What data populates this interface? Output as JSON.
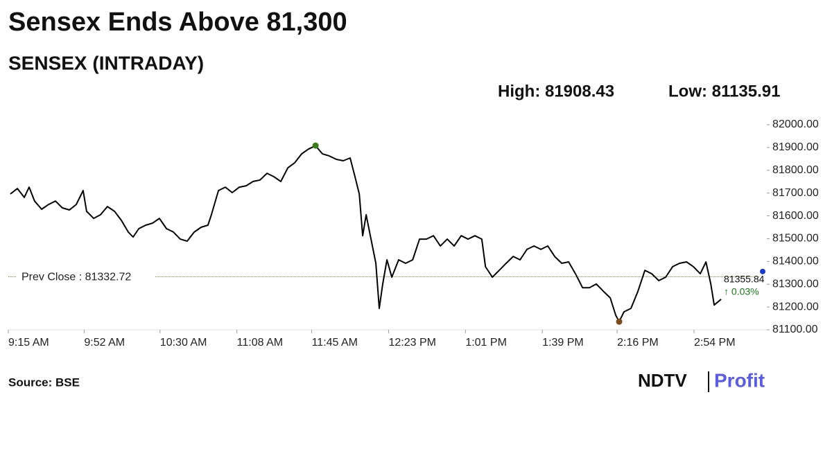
{
  "chart_data": {
    "type": "line",
    "title": "Sensex Ends Above 81,300",
    "subtitle": "SENSEX (INTRADAY)",
    "high": {
      "value": 81908.43,
      "label": "High: 81908.43"
    },
    "low": {
      "value": 81135.91,
      "label": "Low: 81135.91"
    },
    "prev_close": {
      "value": 81332.72,
      "label": "Prev Close : 81332.72"
    },
    "last": {
      "value": 81355.84,
      "change": "↑ 0.03%"
    },
    "source": "Source: BSE",
    "brand": [
      "NDTV",
      "Profit"
    ],
    "xlim": [
      0,
      375
    ],
    "xticks": [
      {
        "value": 0,
        "label": "9:15 AM"
      },
      {
        "value": 37.5,
        "label": "9:52 AM"
      },
      {
        "value": 75,
        "label": "10:30 AM"
      },
      {
        "value": 113,
        "label": "11:08 AM"
      },
      {
        "value": 150,
        "label": "11:45 AM"
      },
      {
        "value": 188,
        "label": "12:23 PM"
      },
      {
        "value": 226,
        "label": "1:01 PM"
      },
      {
        "value": 264,
        "label": "1:39 PM"
      },
      {
        "value": 301,
        "label": "2:16 PM"
      },
      {
        "value": 339,
        "label": "2:54 PM"
      }
    ],
    "ylim": [
      81100,
      82000
    ],
    "yticks": [
      {
        "value": 81100,
        "label": "81100.00"
      },
      {
        "value": 81200,
        "label": "81200.00"
      },
      {
        "value": 81300,
        "label": "81300.00"
      },
      {
        "value": 81400,
        "label": "81400.00"
      },
      {
        "value": 81500,
        "label": "81500.00"
      },
      {
        "value": 81600,
        "label": "81600.00"
      },
      {
        "value": 81700,
        "label": "81700.00"
      },
      {
        "value": 81800,
        "label": "81800.00"
      },
      {
        "value": 81900,
        "label": "81900.00"
      },
      {
        "value": 82000,
        "label": "82000.00"
      }
    ],
    "series": [
      {
        "color": "#000000",
        "x": [
          1.0,
          4.5,
          7.9,
          10.3,
          13.0,
          16.5,
          19.9,
          23.3,
          26.7,
          30.2,
          33.6,
          37.0,
          38.7,
          42.2,
          45.6,
          49.0,
          52.5,
          55.9,
          59.3,
          61.7,
          64.5,
          67.9,
          71.3,
          74.7,
          78.2,
          81.6,
          85.0,
          88.4,
          91.9,
          95.3,
          98.7,
          100.4,
          103.9,
          107.3,
          110.7,
          114.2,
          117.6,
          121.0,
          124.4,
          127.9,
          131.3,
          134.7,
          138.2,
          141.6,
          145.0,
          148.4,
          151.9,
          155.3,
          158.7,
          162.2,
          165.6,
          169.0,
          171.4,
          173.5,
          175.2,
          176.9,
          179.3,
          181.7,
          183.4,
          185.1,
          187.2,
          189.6,
          193.0,
          196.4,
          199.9,
          203.3,
          206.7,
          210.2,
          213.6,
          217.0,
          220.4,
          223.9,
          227.3,
          230.7,
          234.1,
          235.9,
          239.3,
          242.7,
          246.1,
          249.6,
          253.0,
          256.4,
          259.9,
          263.3,
          266.7,
          270.1,
          273.6,
          277.0,
          280.4,
          283.9,
          287.3,
          290.7,
          294.1,
          297.6,
          300.3,
          302.0,
          304.4,
          307.8,
          311.3,
          314.7,
          318.1,
          321.6,
          325.0,
          328.4,
          331.8,
          335.3,
          338.7,
          342.1,
          344.9,
          347.3,
          349.0,
          352.4
        ],
        "values": [
          81696,
          81720,
          81681,
          81726,
          81665,
          81629,
          81650,
          81665,
          81635,
          81626,
          81650,
          81711,
          81620,
          81589,
          81605,
          81641,
          81620,
          81580,
          81529,
          81507,
          81544,
          81559,
          81568,
          81589,
          81544,
          81529,
          81498,
          81489,
          81529,
          81550,
          81559,
          81605,
          81711,
          81726,
          81702,
          81726,
          81732,
          81751,
          81757,
          81787,
          81772,
          81751,
          81811,
          81833,
          81872,
          81893,
          81908,
          81872,
          81863,
          81848,
          81842,
          81854,
          81772,
          81696,
          81513,
          81605,
          81498,
          81392,
          81194,
          81301,
          81407,
          81331,
          81407,
          81392,
          81407,
          81498,
          81498,
          81513,
          81468,
          81498,
          81468,
          81513,
          81498,
          81513,
          81498,
          81377,
          81331,
          81361,
          81392,
          81422,
          81407,
          81453,
          81468,
          81453,
          81468,
          81422,
          81392,
          81398,
          81346,
          81285,
          81285,
          81301,
          81270,
          81240,
          81164,
          81136,
          81179,
          81194,
          81270,
          81361,
          81346,
          81316,
          81331,
          81377,
          81392,
          81398,
          81377,
          81346,
          81398,
          81301,
          81209,
          81234
        ]
      }
    ],
    "grid": false
  }
}
